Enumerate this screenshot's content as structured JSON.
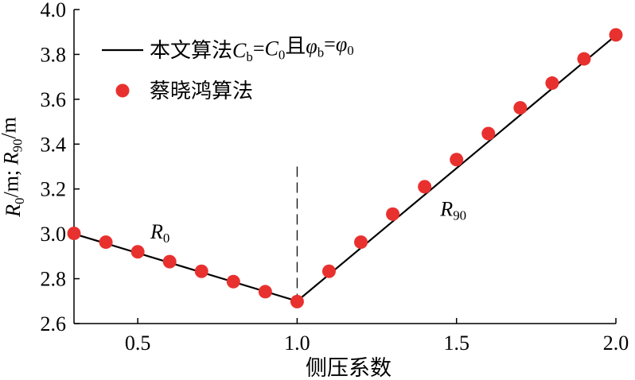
{
  "chart_data": {
    "type": "line",
    "xlabel": "侧压系数",
    "ylabel": {
      "parts": [
        {
          "t": "R",
          "i": true
        },
        {
          "t": "0",
          "sub": true
        },
        {
          "t": "/m; "
        },
        {
          "t": "R",
          "i": true
        },
        {
          "t": "90",
          "sub": true
        },
        {
          "t": "/m"
        }
      ]
    },
    "xlim": [
      0.3,
      2.0
    ],
    "ylim": [
      2.6,
      4.0
    ],
    "xticks": [
      0.5,
      1.0,
      1.5,
      2.0
    ],
    "xtick_labels": [
      "0.5",
      "1.0",
      "1.5",
      "2.0"
    ],
    "yticks": [
      2.6,
      2.8,
      3.0,
      3.2,
      3.4,
      3.6,
      3.8,
      4.0
    ],
    "ytick_labels": [
      "2.6",
      "2.8",
      "3.0",
      "3.2",
      "3.4",
      "3.6",
      "3.8",
      "4.0"
    ],
    "grid": false,
    "legend_position": "top-left",
    "series": [
      {
        "name_parts": [
          {
            "t": "本文算法"
          },
          {
            "t": "C",
            "i": true
          },
          {
            "t": "b",
            "sub": true
          },
          {
            "t": "="
          },
          {
            "t": "C",
            "i": true
          },
          {
            "t": "0",
            "sub": true
          },
          {
            "t": "且"
          },
          {
            "t": "φ",
            "i": true
          },
          {
            "t": "b",
            "sub": true
          },
          {
            "t": "="
          },
          {
            "t": "φ",
            "i": true
          },
          {
            "t": "0",
            "sub": true
          }
        ],
        "style": "line",
        "color": "#000000",
        "x": [
          0.3,
          1.0,
          2.0
        ],
        "y": [
          3.0,
          2.7,
          3.885
        ]
      },
      {
        "name": "蔡晓鸿算法",
        "style": "markers",
        "color": "#e8312f",
        "x": [
          0.3,
          0.4,
          0.5,
          0.6,
          0.7,
          0.8,
          0.9,
          1.0,
          1.1,
          1.2,
          1.3,
          1.4,
          1.5,
          1.6,
          1.7,
          1.8,
          1.9,
          2.0
        ],
        "y": [
          3.002,
          2.963,
          2.92,
          2.876,
          2.833,
          2.787,
          2.742,
          2.698,
          2.833,
          2.963,
          3.088,
          3.21,
          3.331,
          3.447,
          3.562,
          3.672,
          3.78,
          3.887
        ]
      }
    ],
    "reference_line": {
      "x": 1.0,
      "y_range": [
        2.68,
        3.3
      ],
      "style": "dashed"
    },
    "annotations": [
      {
        "parts": [
          {
            "t": "R",
            "i": true
          },
          {
            "t": "0",
            "sub": true
          }
        ],
        "x": 0.57,
        "y": 2.98
      },
      {
        "parts": [
          {
            "t": "R",
            "i": true
          },
          {
            "t": "90",
            "sub": true
          }
        ],
        "x": 1.49,
        "y": 3.08
      }
    ]
  }
}
